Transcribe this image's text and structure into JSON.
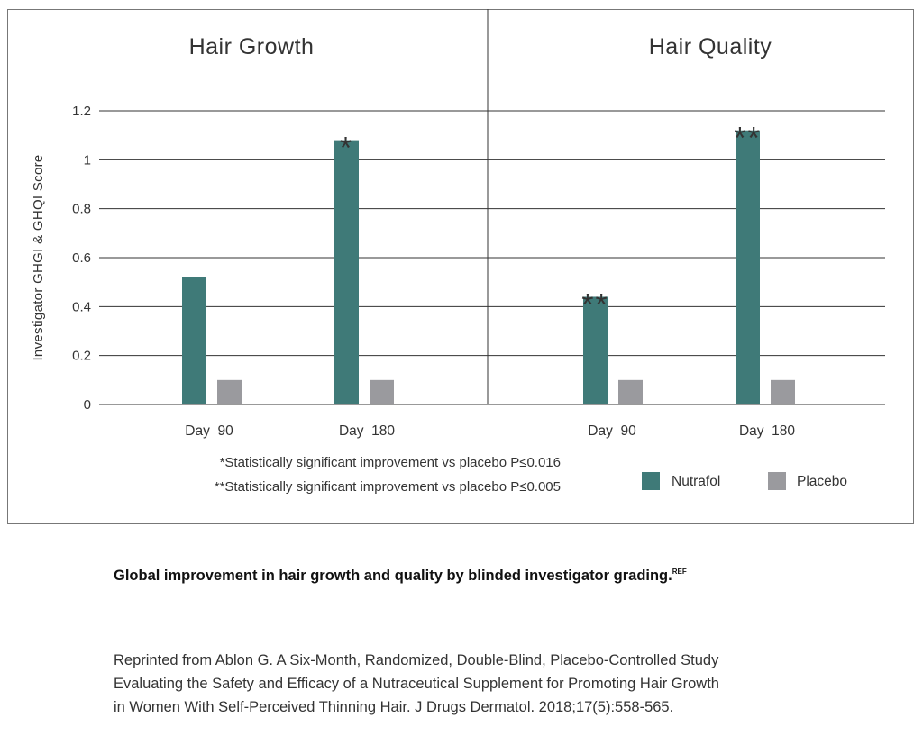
{
  "chart_data": {
    "type": "bar",
    "ylabel": "Investigator GHGI & GHQI Score",
    "ylim": [
      0,
      1.2
    ],
    "yticks": [
      "0",
      "0.2",
      "0.4",
      "0.6",
      "0.8",
      "1",
      "1.2"
    ],
    "ytick_values": [
      0,
      0.2,
      0.4,
      0.6,
      0.8,
      1,
      1.2
    ],
    "grid": true,
    "legend_position": "bottom-right",
    "series_names": [
      "Nutrafol",
      "Placebo"
    ],
    "colors": {
      "Nutrafol": "#3f7a78",
      "Placebo": "#9a9a9e",
      "grid": "#333333"
    },
    "panels": [
      {
        "title": "Hair Growth",
        "categories": [
          "Day  90",
          "Day  180"
        ],
        "series": [
          {
            "name": "Nutrafol",
            "values": [
              0.52,
              1.08
            ]
          },
          {
            "name": "Placebo",
            "values": [
              0.1,
              0.1
            ]
          }
        ],
        "annotations": [
          "",
          "*"
        ]
      },
      {
        "title": "Hair Quality",
        "categories": [
          "Day  90",
          "Day  180"
        ],
        "series": [
          {
            "name": "Nutrafol",
            "values": [
              0.44,
              1.12
            ]
          },
          {
            "name": "Placebo",
            "values": [
              0.1,
              0.1
            ]
          }
        ],
        "annotations": [
          "**",
          "**"
        ]
      }
    ],
    "footnotes": [
      "*Statistically significant improvement vs placebo P≤0.016",
      "**Statistically significant improvement vs placebo P≤0.005"
    ]
  },
  "caption": {
    "text": "Global improvement in hair growth and quality by blinded investigator grading.",
    "sup": "REF"
  },
  "reprint": {
    "lines": [
      "Reprinted from Ablon G. A Six-Month, Randomized, Double-Blind, Placebo-Controlled Study",
      "Evaluating the Safety and Efficacy of a Nutraceutical Supplement for Promoting Hair Growth",
      "in Women With Self-Perceived Thinning Hair. J Drugs Dermatol. 2018;17(5):558-565."
    ]
  }
}
